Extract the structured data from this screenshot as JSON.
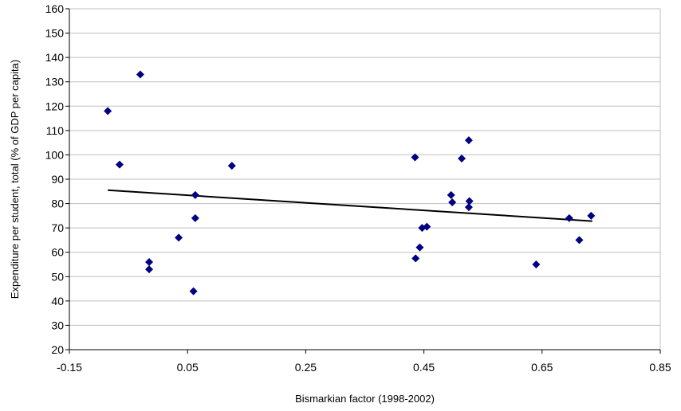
{
  "chart_data": {
    "type": "scatter",
    "title": "",
    "xlabel": "Bismarkian factor (1998-2002)",
    "ylabel": "Expenditure per student, total (% of GDP per capita)",
    "xlim": [
      -0.15,
      0.85
    ],
    "ylim": [
      20,
      160
    ],
    "xticks": [
      -0.15,
      0.05,
      0.25,
      0.45,
      0.65,
      0.85
    ],
    "xtick_labels": [
      "-0.15",
      "0.05",
      "0.25",
      "0.45",
      "0.65",
      "0.85"
    ],
    "yticks": [
      20,
      30,
      40,
      50,
      60,
      70,
      80,
      90,
      100,
      110,
      120,
      130,
      140,
      150,
      160
    ],
    "ytick_labels": [
      "20",
      "30",
      "40",
      "50",
      "60",
      "70",
      "80",
      "90",
      "100",
      "110",
      "120",
      "130",
      "140",
      "150",
      "160"
    ],
    "grid": "horizontal",
    "legend": "none",
    "marker": "diamond",
    "marker_color": "#000080",
    "trendline_color": "#000000",
    "series": [
      {
        "points": [
          [
            -0.085,
            118
          ],
          [
            -0.065,
            96
          ],
          [
            -0.03,
            133
          ],
          [
            -0.015,
            56
          ],
          [
            -0.015,
            53
          ],
          [
            0.035,
            66
          ],
          [
            0.06,
            44
          ],
          [
            0.063,
            83.5
          ],
          [
            0.063,
            74
          ],
          [
            0.125,
            95.5
          ],
          [
            0.435,
            99
          ],
          [
            0.436,
            57.5
          ],
          [
            0.443,
            62
          ],
          [
            0.447,
            70
          ],
          [
            0.455,
            70.5
          ],
          [
            0.496,
            83.5
          ],
          [
            0.498,
            80.5
          ],
          [
            0.514,
            98.5
          ],
          [
            0.526,
            106
          ],
          [
            0.526,
            78.5
          ],
          [
            0.527,
            81
          ],
          [
            0.64,
            55
          ],
          [
            0.696,
            74
          ],
          [
            0.713,
            65
          ],
          [
            0.733,
            75
          ]
        ]
      }
    ],
    "trendline": {
      "x": [
        -0.085,
        0.735
      ],
      "y": [
        85.5,
        72.8
      ]
    }
  }
}
